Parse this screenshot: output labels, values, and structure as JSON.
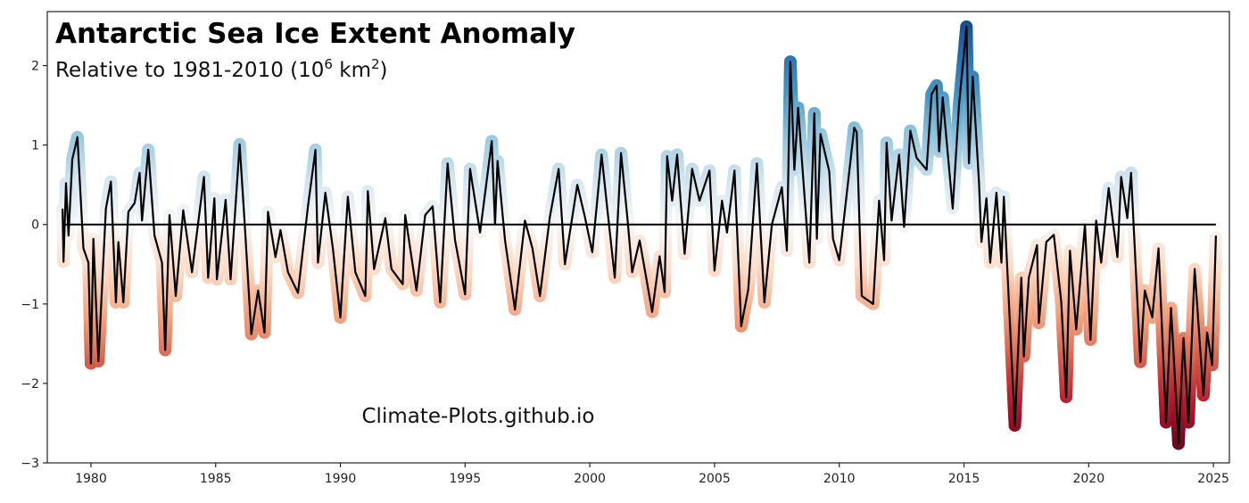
{
  "chart_data": {
    "type": "line",
    "title": "Antarctic Sea Ice Extent Anomaly",
    "subtitle_main": "Relative to 1981-2010 (10",
    "subtitle_exp1": "6",
    "subtitle_mid": " km",
    "subtitle_exp2": "2",
    "subtitle_end": ")",
    "watermark": "Climate-Plots.github.io",
    "xlabel": "",
    "ylabel": "",
    "xlim": [
      1978.25,
      2025.64
    ],
    "ylim": [
      -3,
      2.68
    ],
    "xticks": [
      1980,
      1985,
      1990,
      1995,
      2000,
      2005,
      2010,
      2015,
      2020,
      2025
    ],
    "xtick_labels": [
      "1980",
      "1985",
      "1990",
      "1995",
      "2000",
      "2005",
      "2010",
      "2015",
      "2020",
      "2025"
    ],
    "yticks": [
      -3,
      -2,
      -1,
      0,
      1,
      2
    ],
    "ytick_labels": [
      "−3",
      "−2",
      "−1",
      "0",
      "1",
      "2"
    ],
    "grid": false,
    "zero_line": 0,
    "colormap": "RdBu",
    "colormap_stops": [
      "#67001f",
      "#b2182b",
      "#d6604d",
      "#f4a582",
      "#fddbc7",
      "#f7f7f7",
      "#d1e5f0",
      "#92c5de",
      "#4393c3",
      "#2166ac",
      "#053061"
    ],
    "color_range": [
      -2.8,
      2.8
    ],
    "line_color": "#000000",
    "series": [
      {
        "points": [
          [
            1978.86,
            0.2
          ],
          [
            1978.9,
            -0.47
          ],
          [
            1979.0,
            0.52
          ],
          [
            1979.1,
            -0.14
          ],
          [
            1979.25,
            0.82
          ],
          [
            1979.46,
            1.1
          ],
          [
            1979.7,
            -0.3
          ],
          [
            1979.9,
            -0.48
          ],
          [
            1980.0,
            -1.75
          ],
          [
            1980.1,
            -0.18
          ],
          [
            1980.3,
            -1.72
          ],
          [
            1980.6,
            0.2
          ],
          [
            1980.8,
            0.54
          ],
          [
            1981.0,
            -0.98
          ],
          [
            1981.1,
            -0.22
          ],
          [
            1981.3,
            -0.98
          ],
          [
            1981.5,
            0.16
          ],
          [
            1981.75,
            0.27
          ],
          [
            1981.95,
            0.65
          ],
          [
            1982.05,
            0.05
          ],
          [
            1982.3,
            0.94
          ],
          [
            1982.55,
            -0.14
          ],
          [
            1982.85,
            -0.48
          ],
          [
            1982.98,
            -1.58
          ],
          [
            1983.15,
            0.12
          ],
          [
            1983.4,
            -0.9
          ],
          [
            1983.7,
            0.18
          ],
          [
            1984.05,
            -0.6
          ],
          [
            1984.53,
            0.6
          ],
          [
            1984.7,
            -0.67
          ],
          [
            1984.95,
            0.33
          ],
          [
            1985.05,
            -0.69
          ],
          [
            1985.4,
            0.31
          ],
          [
            1985.6,
            -0.69
          ],
          [
            1985.96,
            1.01
          ],
          [
            1986.15,
            0.08
          ],
          [
            1986.43,
            -1.38
          ],
          [
            1986.7,
            -0.83
          ],
          [
            1986.96,
            -1.36
          ],
          [
            1987.1,
            0.16
          ],
          [
            1987.4,
            -0.41
          ],
          [
            1987.6,
            -0.07
          ],
          [
            1987.9,
            -0.6
          ],
          [
            1988.3,
            -0.86
          ],
          [
            1988.7,
            0.23
          ],
          [
            1989.0,
            0.94
          ],
          [
            1989.1,
            -0.48
          ],
          [
            1989.4,
            0.4
          ],
          [
            1989.7,
            -0.3
          ],
          [
            1990.0,
            -1.17
          ],
          [
            1990.3,
            0.35
          ],
          [
            1990.6,
            -0.6
          ],
          [
            1991.0,
            -0.9
          ],
          [
            1991.1,
            0.42
          ],
          [
            1991.35,
            -0.56
          ],
          [
            1991.8,
            0.08
          ],
          [
            1992.05,
            -0.56
          ],
          [
            1992.5,
            -0.75
          ],
          [
            1992.6,
            0.12
          ],
          [
            1993.05,
            -0.83
          ],
          [
            1993.4,
            0.12
          ],
          [
            1993.7,
            0.23
          ],
          [
            1994.0,
            -0.98
          ],
          [
            1994.3,
            0.77
          ],
          [
            1994.6,
            -0.2
          ],
          [
            1995.0,
            -0.88
          ],
          [
            1995.2,
            0.7
          ],
          [
            1995.6,
            -0.1
          ],
          [
            1996.07,
            1.05
          ],
          [
            1996.2,
            0.0
          ],
          [
            1996.3,
            0.8
          ],
          [
            1996.6,
            -0.2
          ],
          [
            1997.0,
            -1.07
          ],
          [
            1997.4,
            0.05
          ],
          [
            1997.7,
            -0.3
          ],
          [
            1998.0,
            -0.9
          ],
          [
            1998.4,
            0.1
          ],
          [
            1998.75,
            0.7
          ],
          [
            1999.0,
            -0.5
          ],
          [
            1999.5,
            0.5
          ],
          [
            1999.8,
            0.1
          ],
          [
            2000.1,
            -0.35
          ],
          [
            2000.47,
            0.88
          ],
          [
            2000.7,
            0.2
          ],
          [
            2001.0,
            -0.67
          ],
          [
            2001.25,
            0.9
          ],
          [
            2001.5,
            0.1
          ],
          [
            2001.7,
            -0.6
          ],
          [
            2002.0,
            -0.2
          ],
          [
            2002.5,
            -1.1
          ],
          [
            2002.8,
            -0.4
          ],
          [
            2003.0,
            -0.85
          ],
          [
            2003.1,
            0.86
          ],
          [
            2003.3,
            0.3
          ],
          [
            2003.5,
            0.88
          ],
          [
            2003.8,
            -0.37
          ],
          [
            2004.1,
            0.7
          ],
          [
            2004.4,
            0.3
          ],
          [
            2004.8,
            0.68
          ],
          [
            2005.0,
            -0.58
          ],
          [
            2005.3,
            0.3
          ],
          [
            2005.5,
            -0.1
          ],
          [
            2005.8,
            0.68
          ],
          [
            2006.07,
            -1.28
          ],
          [
            2006.35,
            -0.82
          ],
          [
            2006.7,
            0.77
          ],
          [
            2007.0,
            -0.98
          ],
          [
            2007.3,
            0.0
          ],
          [
            2007.7,
            0.47
          ],
          [
            2007.9,
            -0.33
          ],
          [
            2008.04,
            2.05
          ],
          [
            2008.2,
            0.69
          ],
          [
            2008.35,
            1.47
          ],
          [
            2008.8,
            -0.48
          ],
          [
            2009.0,
            1.4
          ],
          [
            2009.1,
            -0.18
          ],
          [
            2009.25,
            1.14
          ],
          [
            2009.6,
            0.67
          ],
          [
            2009.75,
            -0.18
          ],
          [
            2010.0,
            -0.45
          ],
          [
            2010.6,
            1.22
          ],
          [
            2010.7,
            1.16
          ],
          [
            2010.9,
            -0.9
          ],
          [
            2011.36,
            -1.0
          ],
          [
            2011.6,
            0.3
          ],
          [
            2011.8,
            -0.45
          ],
          [
            2011.9,
            1.03
          ],
          [
            2012.1,
            0.05
          ],
          [
            2012.4,
            0.88
          ],
          [
            2012.6,
            -0.03
          ],
          [
            2012.85,
            1.18
          ],
          [
            2013.1,
            0.84
          ],
          [
            2013.5,
            0.69
          ],
          [
            2013.7,
            1.64
          ],
          [
            2013.9,
            1.75
          ],
          [
            2014.0,
            0.92
          ],
          [
            2014.15,
            1.6
          ],
          [
            2014.55,
            0.2
          ],
          [
            2014.8,
            1.5
          ],
          [
            2015.1,
            2.49
          ],
          [
            2015.2,
            0.77
          ],
          [
            2015.35,
            1.86
          ],
          [
            2015.6,
            0.54
          ],
          [
            2015.7,
            -0.22
          ],
          [
            2015.9,
            0.33
          ],
          [
            2016.05,
            -0.48
          ],
          [
            2016.3,
            0.4
          ],
          [
            2016.5,
            -0.48
          ],
          [
            2016.6,
            0.35
          ],
          [
            2017.04,
            -2.53
          ],
          [
            2017.3,
            -0.67
          ],
          [
            2017.4,
            -1.66
          ],
          [
            2017.6,
            -0.67
          ],
          [
            2017.93,
            -0.26
          ],
          [
            2018.0,
            -1.24
          ],
          [
            2018.3,
            -0.22
          ],
          [
            2018.6,
            -0.13
          ],
          [
            2018.9,
            -0.98
          ],
          [
            2019.1,
            -2.17
          ],
          [
            2019.25,
            -0.33
          ],
          [
            2019.5,
            -1.32
          ],
          [
            2019.85,
            0.0
          ],
          [
            2020.07,
            -1.45
          ],
          [
            2020.3,
            0.05
          ],
          [
            2020.5,
            -0.48
          ],
          [
            2020.8,
            0.46
          ],
          [
            2021.15,
            -0.41
          ],
          [
            2021.3,
            0.6
          ],
          [
            2021.55,
            0.08
          ],
          [
            2021.7,
            0.65
          ],
          [
            2022.07,
            -1.73
          ],
          [
            2022.25,
            -0.83
          ],
          [
            2022.55,
            -1.17
          ],
          [
            2022.8,
            -0.3
          ],
          [
            2023.1,
            -2.49
          ],
          [
            2023.3,
            -1.05
          ],
          [
            2023.6,
            -2.76
          ],
          [
            2023.8,
            -1.43
          ],
          [
            2024.0,
            -2.49
          ],
          [
            2024.25,
            -0.56
          ],
          [
            2024.6,
            -2.15
          ],
          [
            2024.75,
            -1.36
          ],
          [
            2024.95,
            -1.77
          ],
          [
            2025.1,
            -0.14
          ]
        ]
      }
    ]
  }
}
